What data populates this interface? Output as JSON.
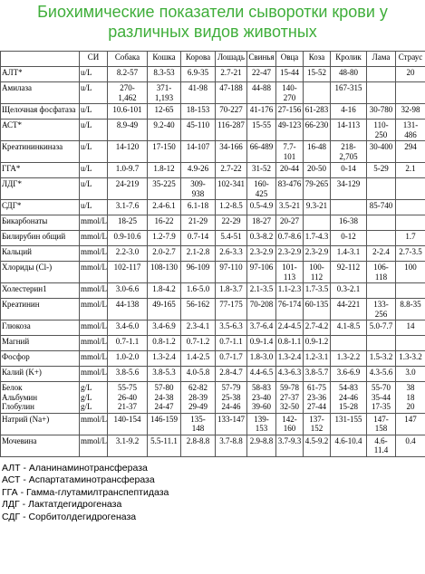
{
  "header": {
    "title": "Биохимические показатели сыворотки крови у различных видов животных"
  },
  "table": {
    "header": [
      "",
      "СИ",
      "Собака",
      "Кошка",
      "Корова",
      "Лошадь",
      "Свинья",
      "Овца",
      "Коза",
      "Кролик",
      "Лама",
      "Страус"
    ],
    "rows": [
      [
        "АЛТ*",
        "u/L",
        "8.2-57",
        "8.3-53",
        "6.9-35",
        "2.7-21",
        "22-47",
        "15-44",
        "15-52",
        "48-80",
        "",
        "20"
      ],
      [
        "Амилаза",
        "u/L",
        "270-\n1,462",
        "371-\n1,193",
        "41-98",
        "47-188",
        "44-88",
        "140-\n270",
        "",
        "167-315",
        "",
        ""
      ],
      [
        "Щелочная фосфатаза",
        "u/L",
        "10.6-101",
        "12-65",
        "18-153",
        "70-227",
        "41-176",
        "27-156",
        "61-283",
        "4-16",
        "30-780",
        "32-98"
      ],
      [
        "АСТ*",
        "u/L",
        "8.9-49",
        "9.2-40",
        "45-110",
        "116-287",
        "15-55",
        "49-123",
        "66-230",
        "14-113",
        "110-\n250",
        "131-\n486"
      ],
      [
        "Креатининкиназа",
        "u/L",
        "14-120",
        "17-150",
        "14-107",
        "34-166",
        "66-489",
        "7.7-\n101",
        "16-48",
        "218-\n2,705",
        "30-400",
        "294"
      ],
      [
        "ГГА*",
        "u/L",
        "1.0-9.7",
        "1.8-12",
        "4.9-26",
        "2.7-22",
        "31-52",
        "20-44",
        "20-50",
        "0-14",
        "5-29",
        "2.1"
      ],
      [
        "ЛДГ*",
        "u/L",
        "24-219",
        "35-225",
        "309-\n938",
        "102-341",
        "160-\n425",
        "83-476",
        "79-265",
        "34-129",
        "",
        ""
      ],
      [
        "СДГ*",
        "u/L",
        "3.1-7.6",
        "2.4-6.1",
        "6.1-18",
        "1.2-8.5",
        "0.5-4.9",
        "3.5-21",
        "9.3-21",
        "",
        "85-740",
        ""
      ],
      [
        "Бикарбонаты",
        "mmol/L",
        "18-25",
        "16-22",
        "21-29",
        "22-29",
        "18-27",
        "20-27",
        "",
        "16-38",
        "",
        ""
      ],
      [
        "Билирубин общий",
        "mmol/L",
        "0.9-10.6",
        "1.2-7.9",
        "0.7-14",
        "5.4-51",
        "0.3-8.2",
        "0.7-8.6",
        "1.7-4.3",
        "0-12",
        "",
        "1.7"
      ],
      [
        "Кальций",
        "mmol/L",
        "2.2-3.0",
        "2.0-2.7",
        "2.1-2.8",
        "2.6-3.3",
        "2.3-2.9",
        "2.3-2.9",
        "2.3-2.9",
        "1.4-3.1",
        "2-2.4",
        "2.7-3.5"
      ],
      [
        "Хлориды (Cl-)",
        "mmol/L",
        "102-117",
        "108-130",
        "96-109",
        "97-110",
        "97-106",
        "101-\n113",
        "100-\n112",
        "92-112",
        "106-\n118",
        "100"
      ],
      [
        "Холестерин1",
        "mmol/L",
        "3.0-6.6",
        "1.8-4.2",
        "1.6-5.0",
        "1.8-3.7",
        "2.1-3.5",
        "1.1-2.3",
        "1.7-3.5",
        "0.3-2.1",
        "",
        ""
      ],
      [
        "Креатинин",
        "mmol/L",
        "44-138",
        "49-165",
        "56-162",
        "77-175",
        "70-208",
        "76-174",
        "60-135",
        "44-221",
        "133-\n256",
        "8.8-35"
      ],
      [
        "Глюкоза",
        "mmol/L",
        "3.4-6.0",
        "3.4-6.9",
        "2.3-4.1",
        "3.5-6.3",
        "3.7-6.4",
        "2.4-4.5",
        "2.7-4.2",
        "4.1-8.5",
        "5.0-7.7",
        "14"
      ],
      [
        "Магний",
        "mmol/L",
        "0.7-1.1",
        "0.8-1.2",
        "0.7-1.2",
        "0.7-1.1",
        "0.9-1.4",
        "0.8-1.1",
        "0.9-1.2",
        "",
        "",
        ""
      ],
      [
        "Фосфор",
        "mmol/L",
        "1.0-2.0",
        "1.3-2.4",
        "1.4-2.5",
        "0.7-1.7",
        "1.8-3.0",
        "1.3-2.4",
        "1.2-3.1",
        "1.3-2.2",
        "1.5-3.2",
        "1.3-3.2"
      ],
      [
        "Калий (K+)",
        "mmol/L",
        "3.8-5.6",
        "3.8-5.3",
        "4.0-5.8",
        "2.8-4.7",
        "4.4-6.5",
        "4.3-6.3",
        "3.8-5.7",
        "3.6-6.9",
        "4.3-5.6",
        "3.0"
      ],
      [
        "Белок\nАльбумин\nГлобулин",
        "g/L\ng/L\ng/L",
        "55-75\n26-40\n21-37",
        "57-80\n24-38\n24-47",
        "62-82\n28-39\n29-49",
        "57-79\n25-38\n24-46",
        "58-83\n23-40\n39-60",
        "59-78\n27-37\n32-50",
        "61-75\n23-36\n27-44",
        "54-83\n24-46\n15-28",
        "55-70\n35-44\n17-35",
        "38\n18\n20"
      ],
      [
        "Натрий (Na+)",
        "mmol/L",
        "140-154",
        "146-159",
        "135-\n148",
        "133-147",
        "139-\n153",
        "142-\n160",
        "137-\n152",
        "131-155",
        "147-\n158",
        "147"
      ],
      [
        "Мочевина",
        "mmol/L",
        "3.1-9.2",
        "5.5-11.1",
        "2.8-8.8",
        "3.7-8.8",
        "2.9-8.8",
        "3.7-9.3",
        "4.5-9.2",
        "4.6-10.4",
        "4.6-\n11.4",
        "0.4"
      ]
    ]
  },
  "notes": [
    "АЛТ - Аланинаминотрансфераза",
    "АСТ - Аспартатаминотрансфераза",
    "ГГА - Гамма-глутамилтранспептидаза",
    "ЛДГ - Лактатдегидрогеназа",
    "СДГ - Сорбитолдегидрогеназа"
  ]
}
